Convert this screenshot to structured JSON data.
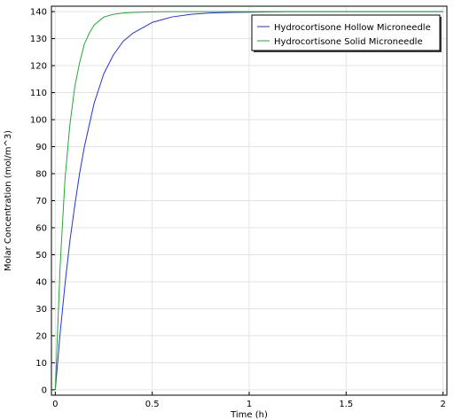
{
  "chart_data": {
    "type": "line",
    "title": "",
    "xlabel": "Time (h)",
    "ylabel": "Molar Concentration (mol/m^3)",
    "xlim": [
      -0.02,
      2.02
    ],
    "ylim": [
      -2,
      142
    ],
    "x_ticks": [
      0,
      0.5,
      1,
      1.5,
      2
    ],
    "x_tick_labels": [
      "0",
      "0.5",
      "1",
      "1.5",
      "2"
    ],
    "y_ticks": [
      0,
      10,
      20,
      30,
      40,
      50,
      60,
      70,
      80,
      90,
      100,
      110,
      120,
      130,
      140
    ],
    "y_tick_labels": [
      "0",
      "10",
      "20",
      "30",
      "40",
      "50",
      "60",
      "70",
      "80",
      "90",
      "100",
      "110",
      "120",
      "130",
      "140"
    ],
    "grid": true,
    "legend_position": "top-right",
    "series": [
      {
        "name": "Hydrocortisone Hollow Microneedle",
        "color": "#2233dd",
        "x": [
          0,
          0.025,
          0.05,
          0.075,
          0.1,
          0.125,
          0.15,
          0.175,
          0.2,
          0.25,
          0.3,
          0.35,
          0.4,
          0.45,
          0.5,
          0.55,
          0.6,
          0.7,
          0.8,
          0.9,
          1.0,
          1.2,
          1.4,
          1.6,
          1.8,
          2.0
        ],
        "y": [
          0,
          21,
          39,
          55,
          68,
          80,
          90,
          98,
          106,
          117,
          124,
          129,
          132,
          134,
          136,
          137,
          138,
          139,
          139.5,
          139.7,
          139.8,
          140,
          140,
          140,
          140,
          140
        ]
      },
      {
        "name": "Hydrocortisone Solid Microneedle",
        "color": "#22aa33",
        "x": [
          0,
          0.025,
          0.05,
          0.075,
          0.1,
          0.125,
          0.15,
          0.175,
          0.2,
          0.25,
          0.3,
          0.35,
          0.4,
          0.45,
          0.5,
          0.6,
          0.7,
          0.8,
          1.0,
          1.2,
          1.4,
          1.6,
          1.8,
          2.0
        ],
        "y": [
          0,
          46,
          78,
          98,
          112,
          121,
          128,
          132,
          135,
          138,
          139,
          139.5,
          139.7,
          139.8,
          139.9,
          140,
          140,
          140,
          140,
          140,
          140,
          140,
          140,
          140
        ]
      }
    ]
  }
}
